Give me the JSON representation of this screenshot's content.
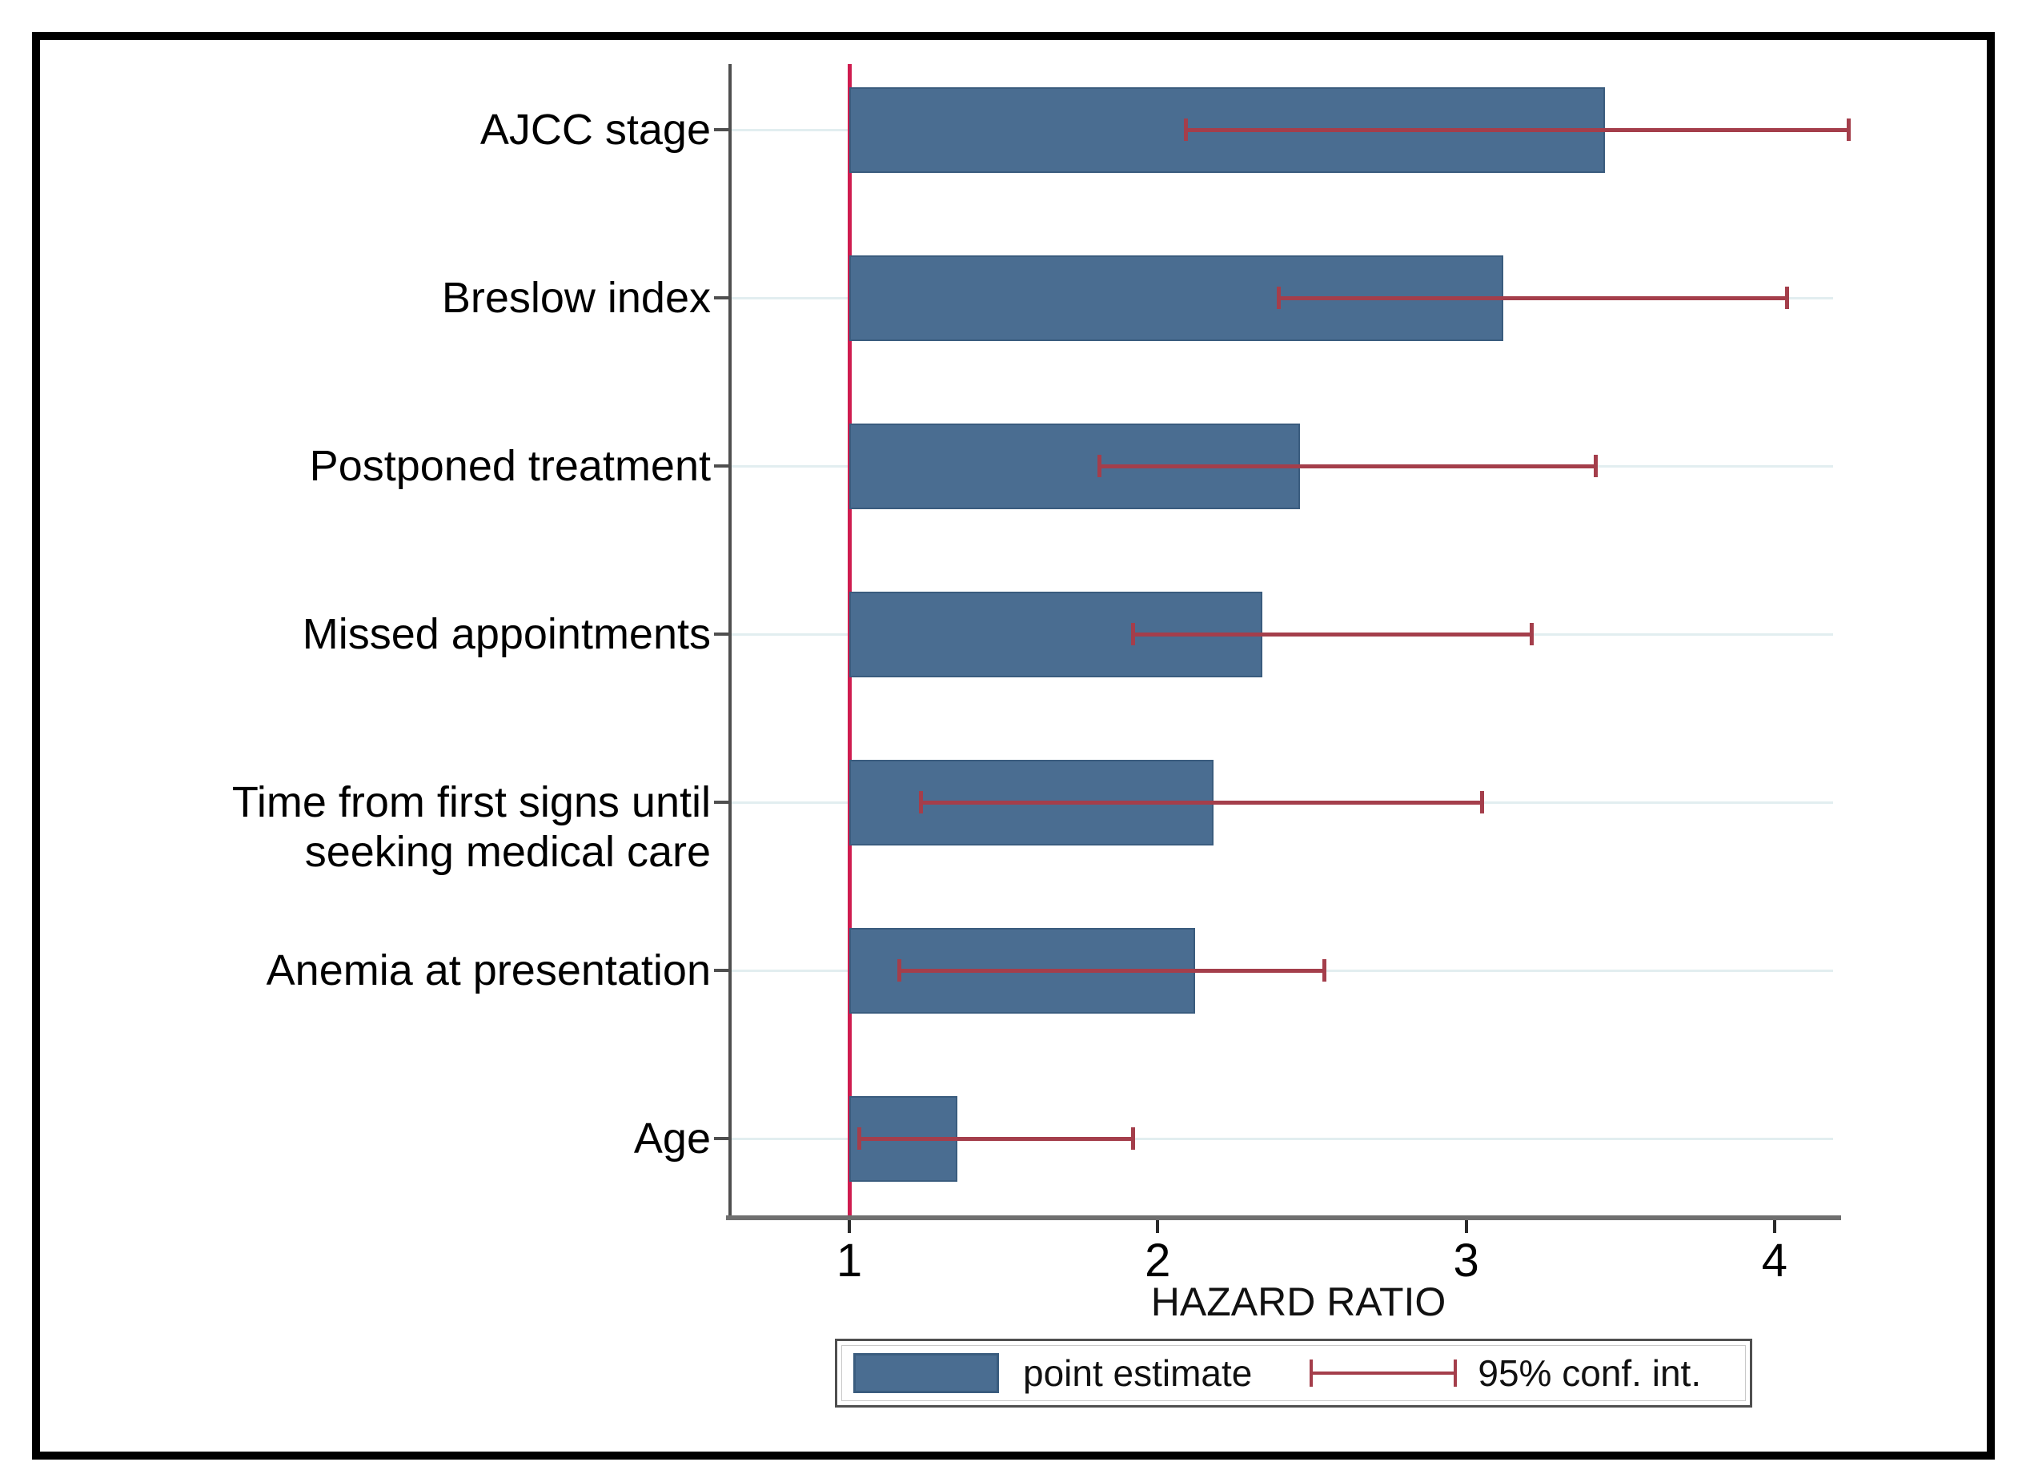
{
  "figure": {
    "xlabel": "HAZARD RATIO",
    "legend": {
      "bar_label": "point estimate",
      "ci_label": "95% conf. int."
    }
  },
  "colors": {
    "bar_fill": "#4a6d91",
    "bar_border": "#3a5c7e",
    "reference_line": "#cf1c4f",
    "ci": "#a43e4b",
    "gridline": "#e2eef0",
    "x_axis": "#6f6f6f",
    "y_axis": "#4f4f4f",
    "tick": "#2a2a2a",
    "text": "#000000",
    "frame": "#000000"
  },
  "chart_data": {
    "type": "bar",
    "orientation": "horizontal",
    "title": "",
    "xlabel": "HAZARD RATIO",
    "categories": [
      "AJCC stage",
      "Breslow index",
      "Postponed treatment",
      "Missed appointments",
      "Time from first signs until seeking medical care",
      "Anemia at presentation",
      "Age"
    ],
    "category_label_lines": [
      [
        "AJCC stage"
      ],
      [
        "Breslow index"
      ],
      [
        "Postponed treatment"
      ],
      [
        "Missed appointments"
      ],
      [
        "Time from first signs until",
        "seeking medical care"
      ],
      [
        "Anemia at presentation"
      ],
      [
        "Age"
      ]
    ],
    "series": [
      {
        "name": "point estimate",
        "values": [
          3.45,
          3.12,
          2.46,
          2.34,
          2.18,
          2.12,
          1.35
        ]
      }
    ],
    "ci_lower": [
      2.09,
      2.39,
      1.81,
      1.92,
      1.23,
      1.16,
      1.03
    ],
    "ci_upper": [
      4.24,
      4.04,
      3.42,
      3.21,
      3.05,
      2.54,
      1.92
    ],
    "bar_base": 1,
    "reference_line_x": 1,
    "xlim": [
      0.61,
      4.22
    ],
    "xticks": [
      1,
      2,
      3,
      4
    ],
    "xtick_labels": [
      "1",
      "2",
      "3",
      "4"
    ],
    "grid": "light horizontal gridline per category",
    "legend_position": "bottom-center",
    "legend_entries": [
      "point estimate",
      "95% conf. int."
    ]
  }
}
